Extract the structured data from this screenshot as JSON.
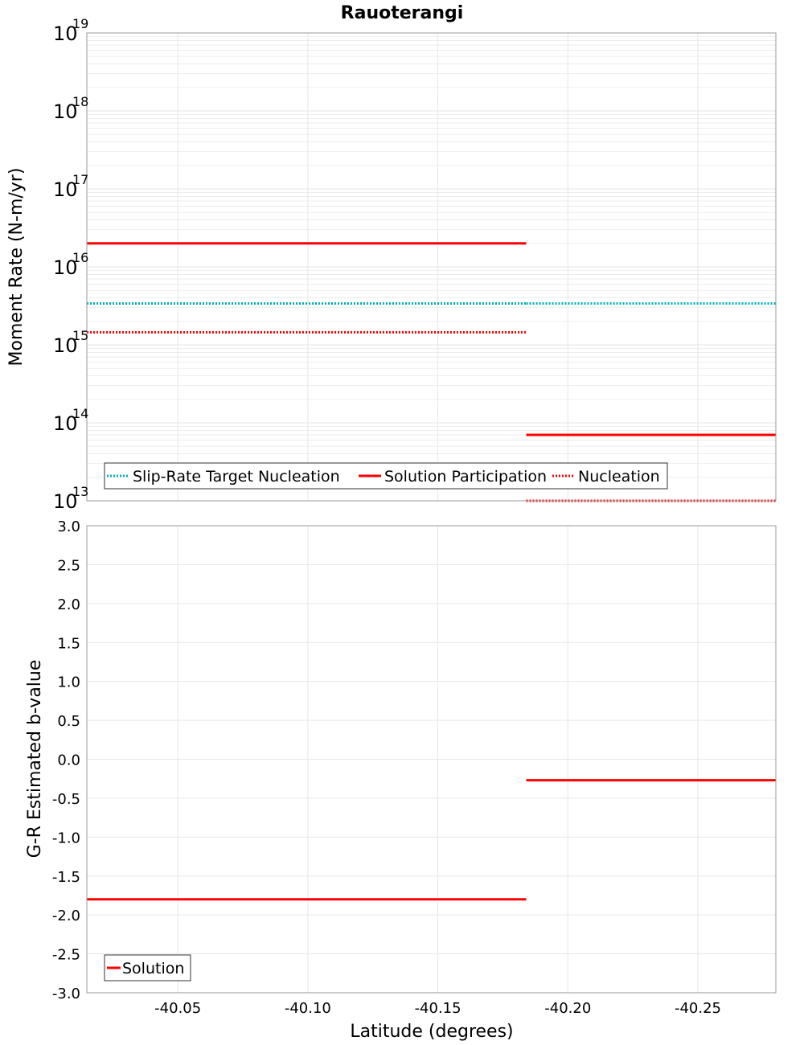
{
  "title": "Rauoterangi",
  "colors": {
    "solution": "#ff0000",
    "target": "#00b4b4",
    "nucleation": "#ff0000",
    "grid": "#e6e6e6",
    "frame": "#999999"
  },
  "chart_data": [
    {
      "type": "line",
      "scale": "log",
      "ylabel": "Moment Rate (N-m/yr)",
      "ylim_exponents": [
        13,
        19
      ],
      "yticks": [
        {
          "base": "10",
          "exp": "13"
        },
        {
          "base": "10",
          "exp": "14"
        },
        {
          "base": "10",
          "exp": "15"
        },
        {
          "base": "10",
          "exp": "16"
        },
        {
          "base": "10",
          "exp": "17"
        },
        {
          "base": "10",
          "exp": "18"
        },
        {
          "base": "10",
          "exp": "19"
        }
      ],
      "xlim": [
        -40.015,
        -40.28
      ],
      "series": [
        {
          "name": "Slip-Rate Target Nucleation",
          "style": "dotted",
          "color": "#00b4b4",
          "segments": [
            {
              "x": [
                -40.015,
                -40.184
              ],
              "y": 3400000000000000.0
            },
            {
              "x": [
                -40.184,
                -40.28
              ],
              "y": 3400000000000000.0
            }
          ]
        },
        {
          "name": "Solution Participation",
          "style": "solid",
          "color": "#ff0000",
          "segments": [
            {
              "x": [
                -40.015,
                -40.184
              ],
              "y": 2e+16
            },
            {
              "x": [
                -40.184,
                -40.28
              ],
              "y": 70000000000000.0
            }
          ]
        },
        {
          "name": "Nucleation",
          "style": "dotted",
          "color": "#ff0000",
          "segments": [
            {
              "x": [
                -40.015,
                -40.184
              ],
              "y": 1450000000000000.0
            },
            {
              "x": [
                -40.184,
                -40.28
              ],
              "y": 10000000000000.0
            }
          ]
        }
      ],
      "legend": [
        "Slip-Rate Target Nucleation",
        "Solution Participation",
        "Nucleation"
      ],
      "legend_position": "bottom-left"
    },
    {
      "type": "line",
      "ylabel": "G-R Estimated b-value",
      "xlabel": "Latitude (degrees)",
      "ylim": [
        -3.0,
        3.0
      ],
      "yticks": [
        "3.0",
        "2.5",
        "2.0",
        "1.5",
        "1.0",
        "0.5",
        "0.0",
        "-0.5",
        "-1.0",
        "-1.5",
        "-2.0",
        "-2.5",
        "-3.0"
      ],
      "xlim": [
        -40.015,
        -40.28
      ],
      "xticks": [
        {
          "value": -40.05,
          "label": "-40.05"
        },
        {
          "value": -40.1,
          "label": "-40.10"
        },
        {
          "value": -40.15,
          "label": "-40.15"
        },
        {
          "value": -40.2,
          "label": "-40.20"
        },
        {
          "value": -40.25,
          "label": "-40.25"
        }
      ],
      "series": [
        {
          "name": "Solution",
          "style": "solid",
          "color": "#ff0000",
          "segments": [
            {
              "x": [
                -40.015,
                -40.184
              ],
              "y": -1.8
            },
            {
              "x": [
                -40.184,
                -40.28
              ],
              "y": -0.27
            }
          ]
        }
      ],
      "legend": [
        "Solution"
      ],
      "legend_position": "bottom-left"
    }
  ]
}
